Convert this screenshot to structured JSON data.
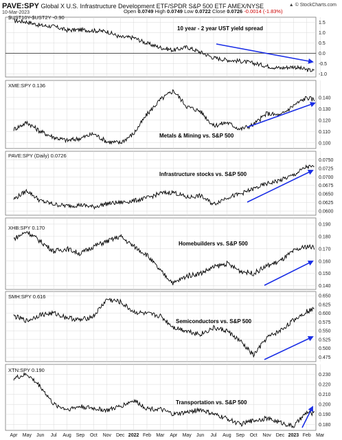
{
  "header": {
    "symbol": "PAVE:SPY",
    "description": "Global X U.S. Infrastructure Development ETF/SPDR S&P 500 ETF AMEX/NYSE",
    "date": "10-Mar-2023",
    "open_label": "Open",
    "open": "0.0749",
    "high_label": "High",
    "high": "0.0749",
    "low_label": "Low",
    "low": "0.0722",
    "close_label": "Close",
    "close": "0.0726",
    "change": "-0.0014 (-1.83%)",
    "brand": "© StockCharts.com",
    "brand_icon": "stockcharts-logo-icon"
  },
  "colors": {
    "line": "#000000",
    "arrow": "#1a2ee6",
    "grid": "#d9d9d9",
    "change_negative": "#cc0000"
  },
  "x_axis": {
    "months": [
      "Apr",
      "May",
      "Jun",
      "Jul",
      "Aug",
      "Sep",
      "Oct",
      "Nov",
      "Dec",
      "2022",
      "Feb",
      "Mar",
      "Apr",
      "May",
      "Jun",
      "Jul",
      "Aug",
      "Sep",
      "Oct",
      "Nov",
      "Dec",
      "2023",
      "Feb",
      "Mar"
    ],
    "range": [
      "2021-04-01",
      "2023-03-10"
    ]
  },
  "chart_data": [
    {
      "type": "line",
      "legend": "$UST10Y-$UST2Y -0.90",
      "annotation": "10 year - 2 year UST yield spread",
      "ylim": [
        -1.15,
        1.75
      ],
      "yticks": [
        1.5,
        1.0,
        0.5,
        0.0,
        -0.5,
        -1.0
      ],
      "tick_labels": [
        "1.5",
        "1.0",
        "0.5",
        "0.0",
        "-0.5",
        "-1.0"
      ],
      "zero_line": true,
      "arrow": "down",
      "series": [
        {
          "x": [
            "2021-04",
            "2021-05",
            "2021-06",
            "2021-07",
            "2021-08",
            "2021-09",
            "2021-10",
            "2021-11",
            "2021-12",
            "2022-01",
            "2022-02",
            "2022-03",
            "2022-04",
            "2022-05",
            "2022-06",
            "2022-07",
            "2022-08",
            "2022-09",
            "2022-10",
            "2022-11",
            "2022-12",
            "2023-01",
            "2023-02",
            "2023-03"
          ],
          "values": [
            1.58,
            1.52,
            1.35,
            1.3,
            1.12,
            1.14,
            1.1,
            1.06,
            0.78,
            0.76,
            0.48,
            0.28,
            0.15,
            0.3,
            0.06,
            -0.22,
            -0.32,
            -0.38,
            -0.48,
            -0.62,
            -0.72,
            -0.65,
            -0.8,
            -0.9
          ]
        }
      ]
    },
    {
      "type": "line",
      "legend": "XME:SPY 0.136",
      "annotation": "Metals & Mining vs. S&P 500",
      "ylim": [
        0.095,
        0.155
      ],
      "yticks": [
        0.14,
        0.13,
        0.12,
        0.11,
        0.1
      ],
      "tick_labels": [
        "0.140",
        "0.130",
        "0.120",
        "0.110",
        "0.100"
      ],
      "arrow": "up",
      "series": [
        {
          "x": [
            "2021-04",
            "2021-05",
            "2021-06",
            "2021-07",
            "2021-08",
            "2021-09",
            "2021-10",
            "2021-11",
            "2021-12",
            "2022-01",
            "2022-02",
            "2022-03",
            "2022-04",
            "2022-05",
            "2022-06",
            "2022-07",
            "2022-08",
            "2022-09",
            "2022-10",
            "2022-11",
            "2022-12",
            "2023-01",
            "2023-02",
            "2023-03"
          ],
          "values": [
            0.112,
            0.118,
            0.11,
            0.105,
            0.102,
            0.104,
            0.108,
            0.101,
            0.1,
            0.108,
            0.125,
            0.138,
            0.146,
            0.132,
            0.128,
            0.115,
            0.118,
            0.112,
            0.116,
            0.126,
            0.124,
            0.133,
            0.14,
            0.136
          ]
        }
      ]
    },
    {
      "type": "line",
      "legend": "PAVE:SPY (Daily) 0.0726",
      "annotation": "Infrastructure stocks vs. S&P 500",
      "ylim": [
        0.0588,
        0.0775
      ],
      "yticks": [
        0.075,
        0.0725,
        0.07,
        0.0675,
        0.065,
        0.0625,
        0.06
      ],
      "tick_labels": [
        "0.0750",
        "0.0725",
        "0.0700",
        "0.0675",
        "0.0650",
        "0.0625",
        "0.0600"
      ],
      "arrow": "up",
      "series": [
        {
          "x": [
            "2021-04",
            "2021-05",
            "2021-06",
            "2021-07",
            "2021-08",
            "2021-09",
            "2021-10",
            "2021-11",
            "2021-12",
            "2022-01",
            "2022-02",
            "2022-03",
            "2022-04",
            "2022-05",
            "2022-06",
            "2022-07",
            "2022-08",
            "2022-09",
            "2022-10",
            "2022-11",
            "2022-12",
            "2023-01",
            "2023-02",
            "2023-03"
          ],
          "values": [
            0.0635,
            0.066,
            0.063,
            0.062,
            0.0615,
            0.0618,
            0.0612,
            0.0622,
            0.0625,
            0.063,
            0.0638,
            0.0652,
            0.0655,
            0.064,
            0.0645,
            0.062,
            0.064,
            0.065,
            0.0665,
            0.068,
            0.069,
            0.0705,
            0.073,
            0.0726
          ]
        }
      ]
    },
    {
      "type": "line",
      "legend": "XHB:SPY 0.170",
      "annotation": "Homebuilders vs. S&P 500",
      "ylim": [
        0.137,
        0.195
      ],
      "yticks": [
        0.19,
        0.18,
        0.17,
        0.16,
        0.15,
        0.14
      ],
      "tick_labels": [
        "0.190",
        "0.180",
        "0.170",
        "0.160",
        "0.150",
        "0.140"
      ],
      "arrow": "up",
      "series": [
        {
          "x": [
            "2021-04",
            "2021-05",
            "2021-06",
            "2021-07",
            "2021-08",
            "2021-09",
            "2021-10",
            "2021-11",
            "2021-12",
            "2022-01",
            "2022-02",
            "2022-03",
            "2022-04",
            "2022-05",
            "2022-06",
            "2022-07",
            "2022-08",
            "2022-09",
            "2022-10",
            "2022-11",
            "2022-12",
            "2023-01",
            "2023-02",
            "2023-03"
          ],
          "values": [
            0.178,
            0.184,
            0.176,
            0.168,
            0.17,
            0.166,
            0.172,
            0.176,
            0.18,
            0.172,
            0.165,
            0.152,
            0.142,
            0.148,
            0.15,
            0.155,
            0.158,
            0.152,
            0.15,
            0.156,
            0.16,
            0.168,
            0.172,
            0.17
          ]
        }
      ]
    },
    {
      "type": "line",
      "legend": "SMH:SPY 0.616",
      "annotation": "Semiconductors vs. S&P 500",
      "ylim": [
        0.462,
        0.662
      ],
      "yticks": [
        0.65,
        0.625,
        0.6,
        0.575,
        0.55,
        0.525,
        0.5,
        0.475
      ],
      "tick_labels": [
        "0.650",
        "0.625",
        "0.600",
        "0.575",
        "0.550",
        "0.525",
        "0.500",
        "0.475"
      ],
      "arrow": "up",
      "series": [
        {
          "x": [
            "2021-04",
            "2021-05",
            "2021-06",
            "2021-07",
            "2021-08",
            "2021-09",
            "2021-10",
            "2021-11",
            "2021-12",
            "2022-01",
            "2022-02",
            "2022-03",
            "2022-04",
            "2022-05",
            "2022-06",
            "2022-07",
            "2022-08",
            "2022-09",
            "2022-10",
            "2022-11",
            "2022-12",
            "2023-01",
            "2023-02",
            "2023-03"
          ],
          "values": [
            0.592,
            0.578,
            0.596,
            0.6,
            0.588,
            0.58,
            0.592,
            0.64,
            0.632,
            0.604,
            0.598,
            0.592,
            0.56,
            0.55,
            0.54,
            0.558,
            0.55,
            0.52,
            0.48,
            0.53,
            0.55,
            0.58,
            0.606,
            0.616
          ]
        }
      ]
    },
    {
      "type": "line",
      "legend": "XTN:SPY 0.190",
      "annotation": "Transportation vs. S&P 500",
      "ylim": [
        0.174,
        0.24
      ],
      "yticks": [
        0.23,
        0.22,
        0.21,
        0.2,
        0.19,
        0.18
      ],
      "tick_labels": [
        "0.230",
        "0.220",
        "0.210",
        "0.200",
        "0.190",
        "0.180"
      ],
      "arrow": "up",
      "series": [
        {
          "x": [
            "2021-04",
            "2021-05",
            "2021-06",
            "2021-07",
            "2021-08",
            "2021-09",
            "2021-10",
            "2021-11",
            "2021-12",
            "2022-01",
            "2022-02",
            "2022-03",
            "2022-04",
            "2022-05",
            "2022-06",
            "2022-07",
            "2022-08",
            "2022-09",
            "2022-10",
            "2022-11",
            "2022-12",
            "2023-01",
            "2023-02",
            "2023-03"
          ],
          "values": [
            0.226,
            0.23,
            0.218,
            0.2,
            0.195,
            0.198,
            0.196,
            0.194,
            0.198,
            0.204,
            0.196,
            0.195,
            0.19,
            0.192,
            0.195,
            0.19,
            0.186,
            0.18,
            0.184,
            0.186,
            0.182,
            0.178,
            0.192,
            0.19
          ]
        }
      ]
    }
  ]
}
